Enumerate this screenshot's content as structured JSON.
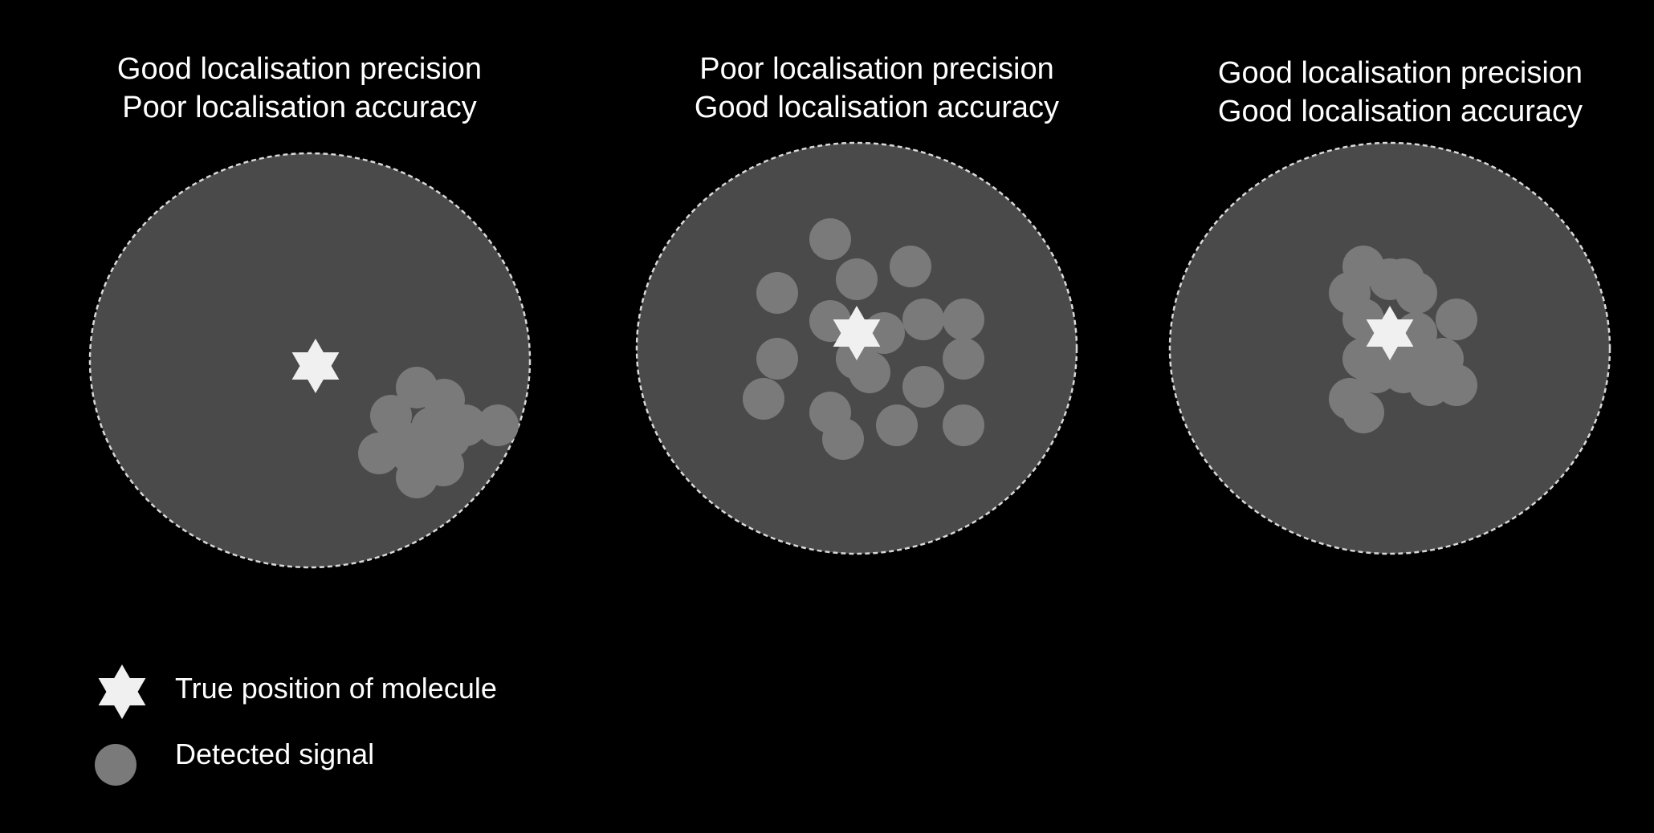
{
  "panels": [
    {
      "title_line1": "Good localisation precision",
      "title_line2": "Poor localisation accuracy"
    },
    {
      "title_line1": "Poor localisation precision",
      "title_line2": "Good localisation accuracy"
    },
    {
      "title_line1": "Good localisation precision",
      "title_line2": "Good localisation accuracy"
    }
  ],
  "legend": {
    "true_position_label": "True position of molecule",
    "detected_signal_label": "Detected signal"
  },
  "colors": {
    "background": "#000000",
    "field": "#4a4a4a",
    "field_border": "#d8d8d8",
    "signal": "#7a7a7a",
    "star": "#f0f0f0",
    "text": "#ffffff"
  }
}
